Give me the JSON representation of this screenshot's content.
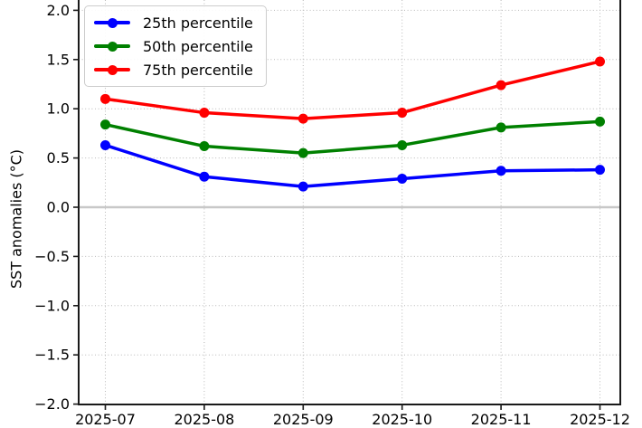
{
  "chart_data": {
    "type": "line",
    "title": "",
    "xlabel": "",
    "ylabel": "SST anomalies (°C)",
    "x_categories": [
      "2025-07",
      "2025-08",
      "2025-09",
      "2025-10",
      "2025-11",
      "2025-12"
    ],
    "series": [
      {
        "name": "25th percentile",
        "color": "#0000ff",
        "values": [
          0.63,
          0.31,
          0.21,
          0.29,
          0.37,
          0.38
        ]
      },
      {
        "name": "50th percentile",
        "color": "#008000",
        "values": [
          0.84,
          0.62,
          0.55,
          0.63,
          0.81,
          0.87
        ]
      },
      {
        "name": "75th percentile",
        "color": "#ff0000",
        "values": [
          1.1,
          0.96,
          0.9,
          0.96,
          1.24,
          1.48
        ]
      }
    ],
    "ylim": [
      -2.0,
      2.1
    ],
    "yticks": [
      2.0,
      1.5,
      1.0,
      0.5,
      0.0,
      -0.5,
      -1.0,
      -1.5,
      -2.0
    ],
    "ytick_labels": [
      "2.0",
      "1.5",
      "1.0",
      "0.5",
      "0.0",
      "−0.5",
      "−1.0",
      "−1.5",
      "−2.0"
    ],
    "grid": true,
    "grid_style": "dotted",
    "zero_line": true,
    "legend_position": "upper left",
    "marker": "circle",
    "colors": {
      "background": "#ffffff",
      "gridline": "#b8b8b8",
      "zero_line": "#c8c8c8",
      "spine": "#1a1a1a",
      "text": "#000000"
    }
  }
}
